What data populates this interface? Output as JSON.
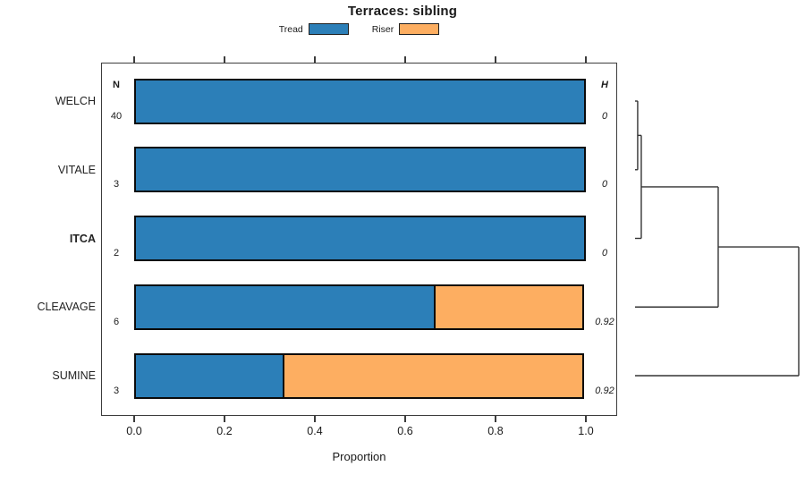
{
  "chart_data": {
    "type": "bar",
    "orientation": "horizontal",
    "stacked": true,
    "title": "Terraces: sibling",
    "xlabel": "Proportion",
    "xlim": [
      0,
      1
    ],
    "xticks": [
      "0.0",
      "0.2",
      "0.4",
      "0.6",
      "0.8",
      "1.0"
    ],
    "grid": false,
    "legend_position": "top-center",
    "categories": [
      "WELCH",
      "VITALE",
      "ITCA",
      "CLEAVAGE",
      "SUMINE"
    ],
    "bold_categories": [
      "ITCA"
    ],
    "series": [
      {
        "name": "Tread",
        "color": "#2C7FB8",
        "values": [
          1.0,
          1.0,
          1.0,
          0.667,
          0.333
        ]
      },
      {
        "name": "Riser",
        "color": "#FDAE61",
        "values": [
          0.0,
          0.0,
          0.0,
          0.333,
          0.667
        ]
      }
    ],
    "n_column": {
      "header": "N",
      "values": [
        "40",
        "3",
        "2",
        "6",
        "3"
      ]
    },
    "h_column": {
      "header": "H",
      "values": [
        "0",
        "0",
        "0",
        "0.92",
        "0.92"
      ]
    },
    "dendrogram": {
      "side": "right",
      "merges": [
        {
          "join": [
            "WELCH",
            "VITALE"
          ],
          "height": 0.016
        },
        {
          "join": [
            "prev",
            "ITCA"
          ],
          "height": 0.038
        },
        {
          "join": [
            "prev",
            "CLEAVAGE"
          ],
          "height": 0.508
        },
        {
          "join": [
            "prev",
            "SUMINE"
          ],
          "height": 1.0
        }
      ]
    }
  },
  "legend": {
    "items": [
      {
        "label": "Tread",
        "color": "#2C7FB8"
      },
      {
        "label": "Riser",
        "color": "#FDAE61"
      }
    ]
  },
  "colors": {
    "tread": "#2C7FB8",
    "riser": "#FDAE61",
    "bar_border": "#0b0b0b",
    "box_border": "#3c3c3c",
    "dendro_line": "#333333"
  }
}
